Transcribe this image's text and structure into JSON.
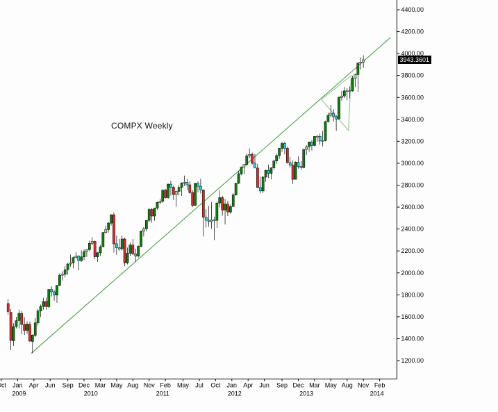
{
  "chart_data": {
    "type": "candlestick",
    "title": "COMPX Weekly",
    "last_price": 3943.3601,
    "last_price_label": "3943.3601",
    "grid": false,
    "legend": "none",
    "y_axis": {
      "side": "right",
      "tick_format": ".2f",
      "ticks": [
        4400,
        4200,
        4000,
        3800,
        3600,
        3400,
        3200,
        3000,
        2800,
        2600,
        2400,
        2200,
        2000,
        1800,
        1600,
        1400,
        1200
      ]
    },
    "x_axis": {
      "unit": "weeks_from_2008-11-07",
      "week_domain": [
        -6,
        286
      ],
      "month_ticks": [
        {
          "label": "Oct",
          "week": -5
        },
        {
          "label": "Jan",
          "week": 7
        },
        {
          "label": "Apr",
          "week": 19
        },
        {
          "label": "Jun",
          "week": 31
        },
        {
          "label": "Sep",
          "week": 44
        },
        {
          "label": "Dec",
          "week": 56
        },
        {
          "label": "Mar",
          "week": 68
        },
        {
          "label": "May",
          "week": 80
        },
        {
          "label": "Aug",
          "week": 92
        },
        {
          "label": "Nov",
          "week": 104
        },
        {
          "label": "Feb",
          "week": 116
        },
        {
          "label": "May",
          "week": 129
        },
        {
          "label": "Jul",
          "week": 141
        },
        {
          "label": "Oct",
          "week": 153
        },
        {
          "label": "Jan",
          "week": 165
        },
        {
          "label": "Apr",
          "week": 177
        },
        {
          "label": "Jun",
          "week": 189
        },
        {
          "label": "Sep",
          "week": 202
        },
        {
          "label": "Dec",
          "week": 214
        },
        {
          "label": "Mar",
          "week": 226
        },
        {
          "label": "May",
          "week": 238
        },
        {
          "label": "Aug",
          "week": 250
        },
        {
          "label": "Nov",
          "week": 262
        },
        {
          "label": "Feb",
          "week": 274
        }
      ],
      "year_ticks": [
        {
          "label": "2009",
          "week": 8
        },
        {
          "label": "2010",
          "week": 61
        },
        {
          "label": "2011",
          "week": 114
        },
        {
          "label": "2012",
          "week": 167
        },
        {
          "label": "2013",
          "week": 220
        },
        {
          "label": "2014",
          "week": 272
        }
      ]
    },
    "candle_week_step": 2,
    "candles_start_week": 0,
    "candles_ohlc": [
      [
        1720,
        1760,
        1620,
        1647
      ],
      [
        1640,
        1670,
        1295,
        1384
      ],
      [
        1380,
        1540,
        1335,
        1509
      ],
      [
        1510,
        1599,
        1493,
        1564
      ],
      [
        1565,
        1665,
        1493,
        1632
      ],
      [
        1630,
        1653,
        1440,
        1529
      ],
      [
        1530,
        1598,
        1434,
        1476
      ],
      [
        1476,
        1558,
        1444,
        1534
      ],
      [
        1530,
        1555,
        1372,
        1378
      ],
      [
        1375,
        1440,
        1266,
        1432
      ],
      [
        1430,
        1587,
        1415,
        1545
      ],
      [
        1545,
        1670,
        1520,
        1653
      ],
      [
        1653,
        1711,
        1597,
        1694
      ],
      [
        1694,
        1773,
        1664,
        1739
      ],
      [
        1739,
        1774,
        1664,
        1692
      ],
      [
        1692,
        1853,
        1678,
        1849
      ],
      [
        1849,
        1879,
        1784,
        1827
      ],
      [
        1827,
        1845,
        1746,
        1797
      ],
      [
        1797,
        1889,
        1727,
        1886
      ],
      [
        1886,
        1996,
        1880,
        1979
      ],
      [
        1979,
        2015,
        1932,
        1986
      ],
      [
        1986,
        2060,
        1958,
        2029
      ],
      [
        2029,
        2088,
        1983,
        2081
      ],
      [
        2081,
        2167,
        2057,
        2091
      ],
      [
        2091,
        2148,
        2041,
        2139
      ],
      [
        2139,
        2190,
        2129,
        2154
      ],
      [
        2154,
        2160,
        2024,
        2112
      ],
      [
        2112,
        2205,
        2100,
        2146
      ],
      [
        2146,
        2214,
        2114,
        2194
      ],
      [
        2194,
        2217,
        2146,
        2211
      ],
      [
        2211,
        2295,
        2200,
        2269
      ],
      [
        2269,
        2326,
        2254,
        2287
      ],
      [
        2287,
        2293,
        2125,
        2147
      ],
      [
        2147,
        2190,
        2100,
        2183
      ],
      [
        2183,
        2255,
        2155,
        2238
      ],
      [
        2238,
        2373,
        2233,
        2368
      ],
      [
        2368,
        2432,
        2360,
        2395
      ],
      [
        2395,
        2463,
        2368,
        2454
      ],
      [
        2454,
        2535,
        2432,
        2530
      ],
      [
        2530,
        2551,
        2185,
        2265
      ],
      [
        2265,
        2342,
        2165,
        2229
      ],
      [
        2229,
        2310,
        2202,
        2219
      ],
      [
        2219,
        2341,
        2205,
        2309
      ],
      [
        2309,
        2321,
        2061,
        2091
      ],
      [
        2091,
        2231,
        2077,
        2179
      ],
      [
        2179,
        2277,
        2155,
        2254
      ],
      [
        2254,
        2309,
        2163,
        2173
      ],
      [
        2173,
        2221,
        2100,
        2153
      ],
      [
        2153,
        2250,
        2140,
        2242
      ],
      [
        2242,
        2386,
        2232,
        2381
      ],
      [
        2381,
        2417,
        2332,
        2401
      ],
      [
        2401,
        2482,
        2379,
        2479
      ],
      [
        2479,
        2593,
        2460,
        2578
      ],
      [
        2578,
        2592,
        2459,
        2518
      ],
      [
        2518,
        2593,
        2475,
        2591
      ],
      [
        2591,
        2649,
        2576,
        2643
      ],
      [
        2643,
        2675,
        2627,
        2652
      ],
      [
        2652,
        2760,
        2640,
        2755
      ],
      [
        2755,
        2766,
        2677,
        2686
      ],
      [
        2686,
        2815,
        2676,
        2809
      ],
      [
        2809,
        2840,
        2705,
        2781
      ],
      [
        2781,
        2798,
        2664,
        2715
      ],
      [
        2715,
        2752,
        2603,
        2743
      ],
      [
        2743,
        2802,
        2706,
        2780
      ],
      [
        2780,
        2825,
        2702,
        2820
      ],
      [
        2820,
        2887,
        2792,
        2827
      ],
      [
        2827,
        2857,
        2759,
        2803
      ],
      [
        2803,
        2834,
        2719,
        2732
      ],
      [
        2732,
        2755,
        2599,
        2616
      ],
      [
        2616,
        2821,
        2610,
        2816
      ],
      [
        2816,
        2835,
        2735,
        2790
      ],
      [
        2790,
        2858,
        2724,
        2756
      ],
      [
        2756,
        2760,
        2332,
        2508
      ],
      [
        2508,
        2581,
        2414,
        2480
      ],
      [
        2480,
        2611,
        2420,
        2468
      ],
      [
        2468,
        2644,
        2402,
        2483
      ],
      [
        2483,
        2513,
        2299,
        2479
      ],
      [
        2479,
        2651,
        2411,
        2637
      ],
      [
        2637,
        2753,
        2597,
        2686
      ],
      [
        2686,
        2703,
        2521,
        2573
      ],
      [
        2573,
        2674,
        2441,
        2627
      ],
      [
        2627,
        2657,
        2518,
        2555
      ],
      [
        2555,
        2623,
        2539,
        2605
      ],
      [
        2605,
        2727,
        2605,
        2711
      ],
      [
        2711,
        2822,
        2704,
        2817
      ],
      [
        2817,
        2930,
        2810,
        2904
      ],
      [
        2904,
        2970,
        2890,
        2964
      ],
      [
        2964,
        2993,
        2900,
        2988
      ],
      [
        2988,
        3090,
        2975,
        3068
      ],
      [
        3068,
        3134,
        3047,
        3080
      ],
      [
        3080,
        3098,
        2987,
        3000
      ],
      [
        3000,
        3085,
        2956,
        2956
      ],
      [
        2956,
        2994,
        2774,
        2779
      ],
      [
        2779,
        2874,
        2726,
        2747
      ],
      [
        2747,
        2885,
        2728,
        2873
      ],
      [
        2873,
        2942,
        2830,
        2935
      ],
      [
        2935,
        2988,
        2866,
        2908
      ],
      [
        2908,
        2963,
        2852,
        2958
      ],
      [
        2958,
        3032,
        2941,
        3021
      ],
      [
        3021,
        3085,
        2994,
        3070
      ],
      [
        3070,
        3140,
        3040,
        3136
      ],
      [
        3136,
        3196,
        3103,
        3180
      ],
      [
        3180,
        3197,
        3081,
        3136
      ],
      [
        3136,
        3152,
        2996,
        3006
      ],
      [
        3006,
        3060,
        2960,
        2982
      ],
      [
        2982,
        3024,
        2811,
        2853
      ],
      [
        2853,
        3016,
        2853,
        3010
      ],
      [
        3010,
        3062,
        2951,
        2971
      ],
      [
        2971,
        3020,
        2940,
        2960
      ],
      [
        2960,
        3127,
        2953,
        3126
      ],
      [
        3126,
        3165,
        3076,
        3150
      ],
      [
        3150,
        3197,
        3105,
        3194
      ],
      [
        3194,
        3213,
        3116,
        3162
      ],
      [
        3162,
        3248,
        3154,
        3244
      ],
      [
        3244,
        3260,
        3196,
        3245
      ],
      [
        3245,
        3270,
        3168,
        3203
      ],
      [
        3203,
        3295,
        3154,
        3206
      ],
      [
        3206,
        3388,
        3200,
        3379
      ],
      [
        3379,
        3462,
        3370,
        3437
      ],
      [
        3437,
        3532,
        3420,
        3456
      ],
      [
        3456,
        3490,
        3379,
        3424
      ],
      [
        3424,
        3440,
        3295,
        3403
      ],
      [
        3403,
        3611,
        3400,
        3600
      ],
      [
        3600,
        3658,
        3571,
        3613
      ],
      [
        3613,
        3695,
        3593,
        3660
      ],
      [
        3660,
        3684,
        3573,
        3658
      ],
      [
        3658,
        3700,
        3592,
        3660
      ],
      [
        3660,
        3798,
        3653,
        3775
      ],
      [
        3775,
        3818,
        3695,
        3808
      ],
      [
        3808,
        3918,
        3650,
        3914
      ],
      [
        3914,
        3966,
        3855,
        3922
      ],
      [
        3922,
        3985,
        3870,
        3943.3601
      ]
    ],
    "trendline": {
      "week1": 17,
      "price1": 1266,
      "week2": 282,
      "price2": 4147,
      "color": "#4a9e4a"
    },
    "pennant_annotation": {
      "points_week_price": [
        [
          231,
          3580
        ],
        [
          253,
          3800
        ],
        [
          251,
          3300
        ]
      ],
      "color": "#8cbf8c"
    },
    "palette": {
      "up_strong": "#117a11",
      "up_mild": "#a9d7a2",
      "neutral": "#ffffff",
      "down_mild": "#39cdd2",
      "down_strong": "#d22c2c",
      "outline": "#000000",
      "wick": "#000000",
      "axis_line": "#000000",
      "label_color": "#000000",
      "tag_bg": "#000000",
      "tag_fg": "#ffffff",
      "plot_bg": "#fdfdfd"
    }
  }
}
